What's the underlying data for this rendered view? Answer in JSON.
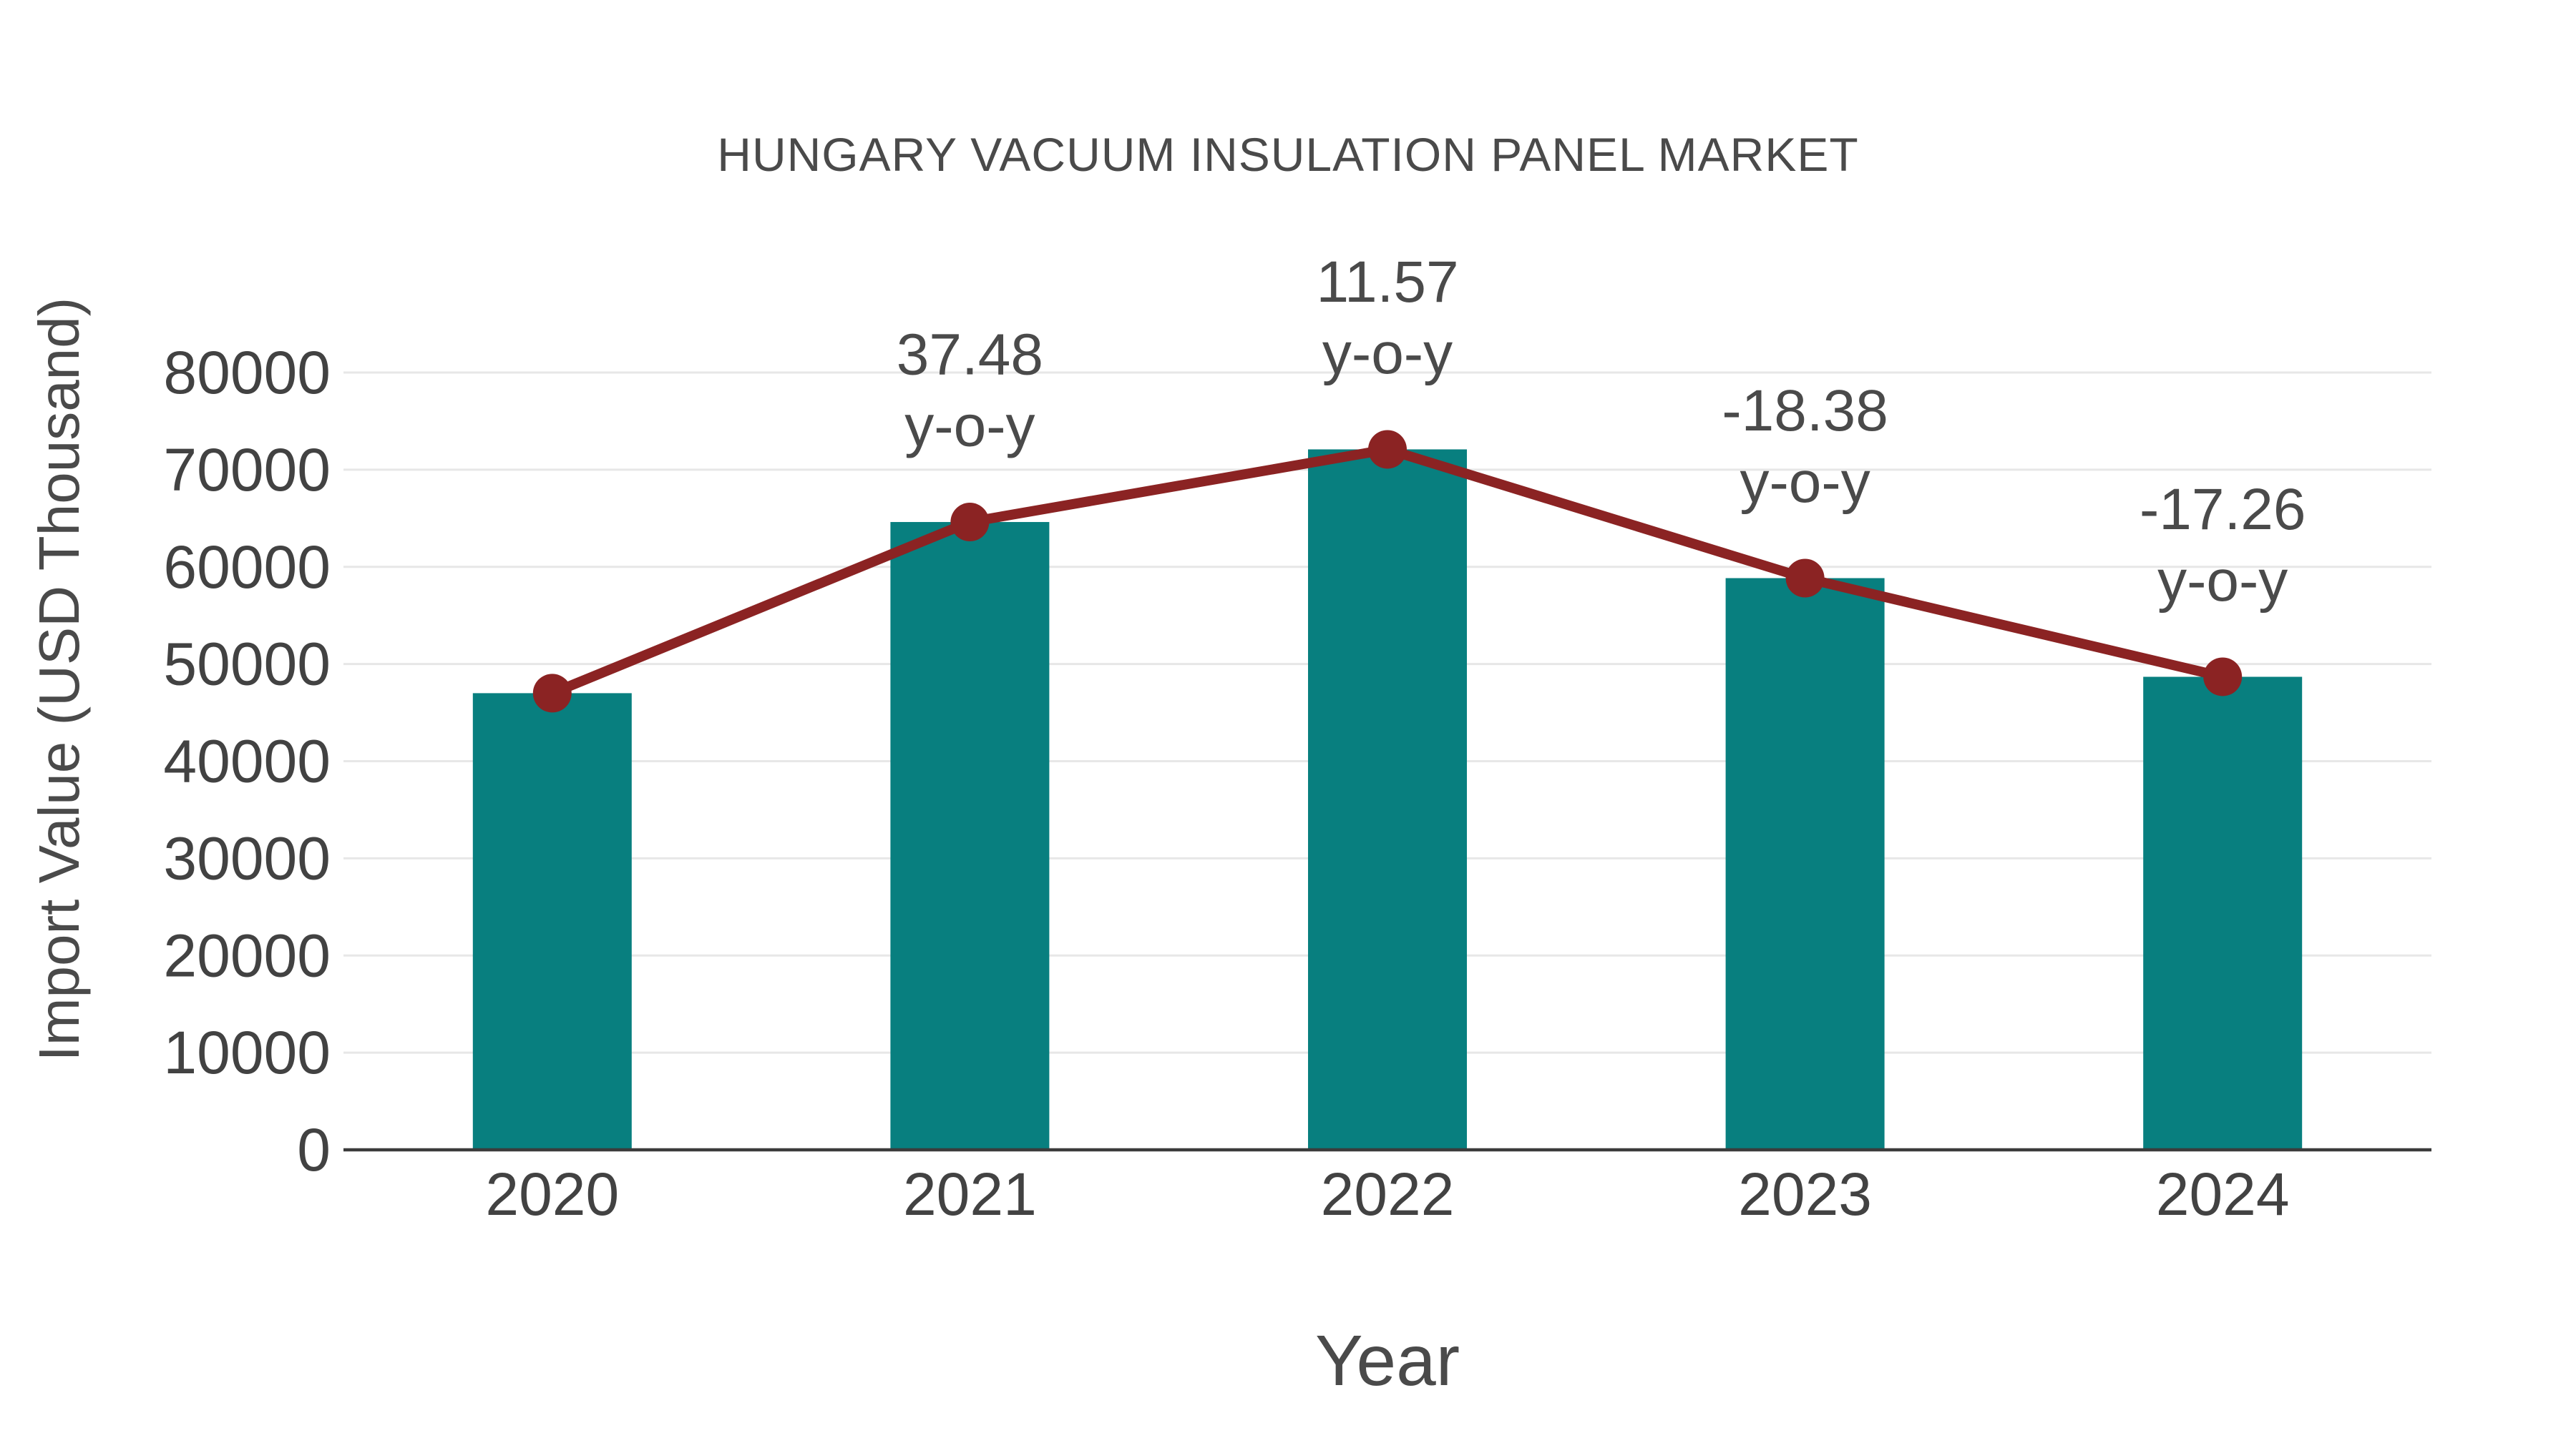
{
  "chart_data": {
    "type": "bar",
    "title": "HUNGARY VACUUM INSULATION PANEL MARKET",
    "xlabel": "Year",
    "ylabel": "Import Value (USD Thousand)",
    "categories": [
      "2020",
      "2021",
      "2022",
      "2023",
      "2024"
    ],
    "series": [
      {
        "name": "Import Value (USD Thousand)",
        "type": "bar",
        "color": "#087f7f",
        "values": [
          47000,
          64616,
          72092,
          58841,
          48685
        ]
      },
      {
        "name": "y-o-y growth (%)",
        "type": "line",
        "color": "#8b2323",
        "values": [
          null,
          37.48,
          11.57,
          -18.38,
          -17.26
        ],
        "note": "line and markers drawn through bar tops"
      }
    ],
    "annotations": [
      {
        "category": "2021",
        "value": "37.48",
        "suffix": "y-o-y"
      },
      {
        "category": "2022",
        "value": "11.57",
        "suffix": "y-o-y"
      },
      {
        "category": "2023",
        "value": "-18.38",
        "suffix": "y-o-y"
      },
      {
        "category": "2024",
        "value": "-17.26",
        "suffix": "y-o-y"
      }
    ],
    "ylim": [
      0,
      80000
    ],
    "yticks": [
      0,
      10000,
      20000,
      30000,
      40000,
      50000,
      60000,
      70000,
      80000
    ],
    "grid": true,
    "legend_position": "none",
    "colors": {
      "bar": "#087f7f",
      "line": "#8b2323",
      "grid": "#e7e7e7",
      "axis": "#3b3b3b",
      "tick_text": "#424242",
      "title_text": "#4a4a4a"
    }
  }
}
